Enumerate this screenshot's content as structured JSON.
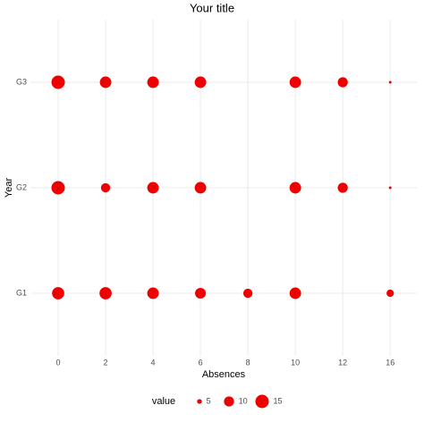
{
  "chart_data": {
    "type": "bubble",
    "title": "Your title",
    "x_label": "Absences",
    "y_label": "Year",
    "categories": [
      "0",
      "2",
      "4",
      "6",
      "8",
      "10",
      "12",
      "16"
    ],
    "y_categories": [
      "G1",
      "G2",
      "G3"
    ],
    "values": [
      [
        13,
        13,
        12,
        11,
        9,
        12,
        null,
        7
      ],
      [
        15,
        9,
        12,
        12,
        null,
        12,
        10,
        4
      ],
      [
        15,
        12,
        12,
        12,
        null,
        12,
        10,
        4
      ]
    ],
    "color": "#ee0000",
    "grid": true,
    "size_legend": {
      "title": "value",
      "values": [
        5,
        10,
        15
      ]
    }
  }
}
